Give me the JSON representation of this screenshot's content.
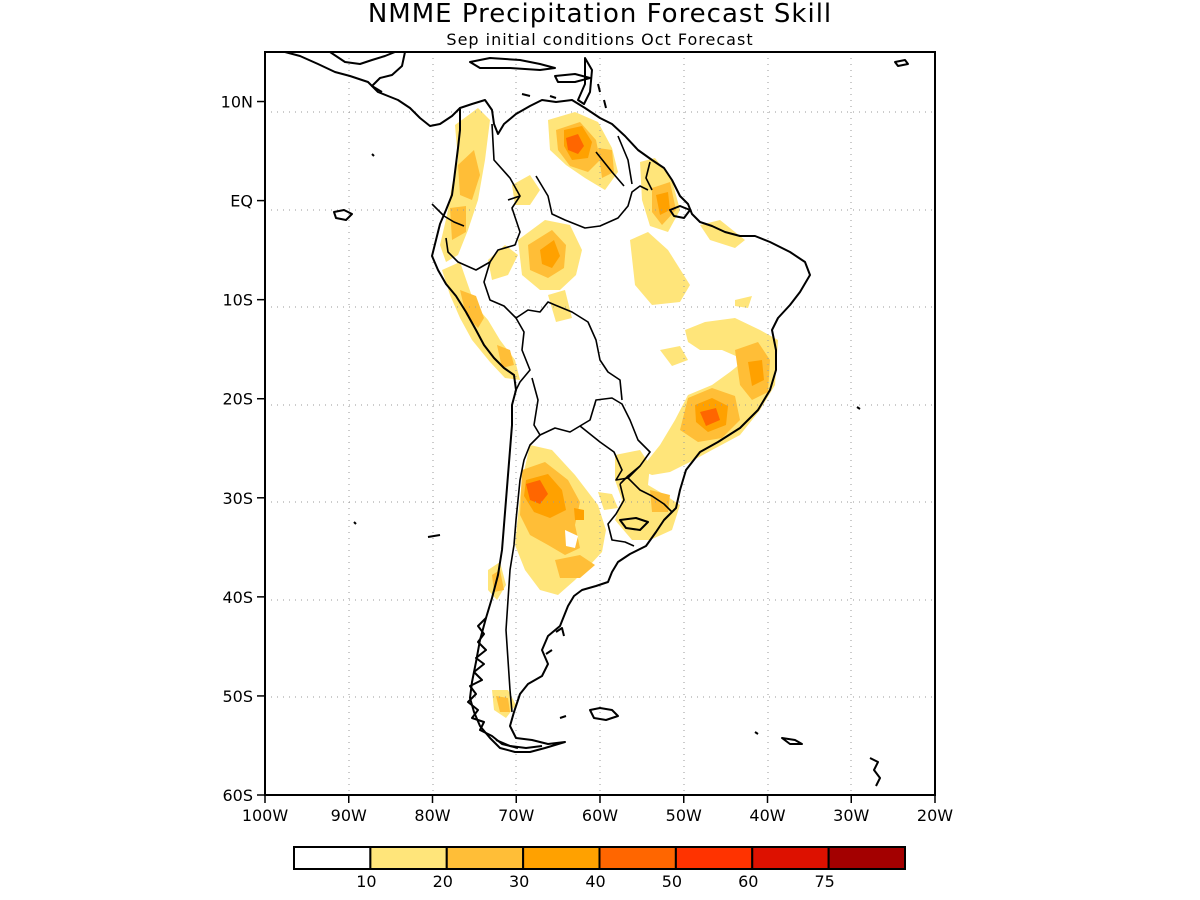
{
  "title": "NMME Precipitation Forecast Skill",
  "subtitle": "Sep initial conditions  Oct Forecast",
  "map": {
    "lon_range": [
      -100,
      -20
    ],
    "lat_range": [
      -60,
      15
    ],
    "lat_ticks": [
      {
        "value": 10,
        "label": "10N"
      },
      {
        "value": 0,
        "label": "EQ"
      },
      {
        "value": -10,
        "label": "10S"
      },
      {
        "value": -20,
        "label": "20S"
      },
      {
        "value": -30,
        "label": "30S"
      },
      {
        "value": -40,
        "label": "40S"
      },
      {
        "value": -50,
        "label": "50S"
      },
      {
        "value": -60,
        "label": "60S"
      }
    ],
    "lon_ticks": [
      {
        "value": -100,
        "label": "100W"
      },
      {
        "value": -90,
        "label": "90W"
      },
      {
        "value": -80,
        "label": "80W"
      },
      {
        "value": -70,
        "label": "70W"
      },
      {
        "value": -60,
        "label": "60W"
      },
      {
        "value": -50,
        "label": "50W"
      },
      {
        "value": -40,
        "label": "40W"
      },
      {
        "value": -30,
        "label": "30W"
      },
      {
        "value": -20,
        "label": "20W"
      }
    ]
  },
  "colorbar": {
    "colors": [
      "#ffffff",
      "#ffe57a",
      "#ffbe37",
      "#ffa100",
      "#ff6600",
      "#ff3300",
      "#dd1100",
      "#a30000"
    ],
    "labels": [
      "10",
      "20",
      "30",
      "40",
      "50",
      "60",
      "75"
    ]
  }
}
